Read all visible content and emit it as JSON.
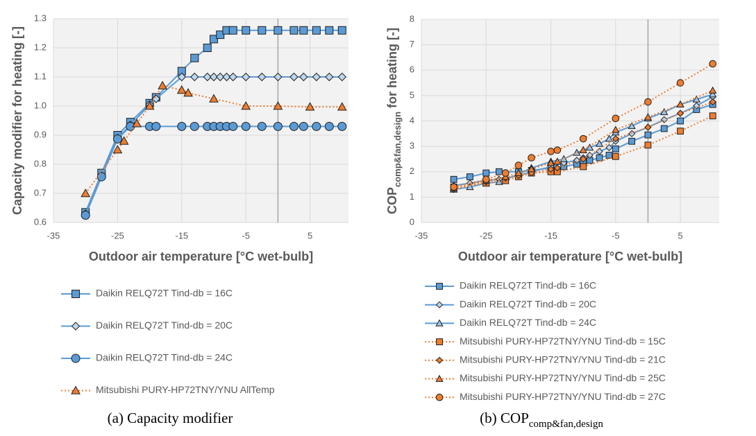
{
  "chart_data": [
    {
      "type": "line",
      "ylabel": "Capacity modifier for heating [-]",
      "xlabel": "Outdoor air temperature [°C wet-bulb]",
      "caption": "(a) Capacity modifier",
      "xlim": [
        -35,
        11
      ],
      "xticks": [
        -35,
        -25,
        -15,
        -5,
        5
      ],
      "ylim": [
        0.6,
        1.3
      ],
      "yticks": [
        0.6,
        0.7,
        0.8,
        0.9,
        {
          "value": 1,
          "label": "1.0"
        },
        1.1,
        1.2,
        1.3
      ],
      "grid": true,
      "series": [
        {
          "name": "Daikin RELQ72T Tind-db = 16C",
          "color": "#5b9bd5",
          "marker": "square",
          "marker_fill": "#5b9bd5",
          "linestyle": "solid",
          "x": [
            -30,
            -27.5,
            -25,
            -23,
            -20,
            -19,
            -15,
            -13,
            -11,
            -10,
            -9,
            -8,
            -7,
            -5,
            -2.5,
            0,
            2.5,
            4,
            6,
            8,
            10
          ],
          "values": [
            0.635,
            0.77,
            0.9,
            0.945,
            1.01,
            1.03,
            1.12,
            1.165,
            1.2,
            1.23,
            1.245,
            1.26,
            1.26,
            1.26,
            1.26,
            1.26,
            1.26,
            1.26,
            1.26,
            1.26,
            1.26
          ]
        },
        {
          "name": "Daikin RELQ72T Tind-db = 20C",
          "color": "#5b9bd5",
          "marker": "diamond",
          "marker_fill": "#bdd7ee",
          "linestyle": "solid",
          "x": [
            -30,
            -27.5,
            -25,
            -23,
            -20,
            -19,
            -15,
            -13,
            -11,
            -10,
            -9,
            -8,
            -7,
            -5,
            -2.5,
            0,
            2.5,
            4,
            6,
            8,
            10
          ],
          "values": [
            0.63,
            0.76,
            0.89,
            0.935,
            1.005,
            1.025,
            1.1,
            1.1,
            1.1,
            1.1,
            1.1,
            1.1,
            1.1,
            1.1,
            1.1,
            1.1,
            1.1,
            1.1,
            1.1,
            1.1,
            1.1
          ]
        },
        {
          "name": "Daikin RELQ72T Tind-db = 24C",
          "color": "#5b9bd5",
          "marker": "circle",
          "marker_fill": "#5b9bd5",
          "linestyle": "solid",
          "x": [
            -30,
            -27.5,
            -25,
            -23,
            -20,
            -19,
            -15,
            -13,
            -11,
            -10,
            -9,
            -8,
            -7,
            -5,
            -2.5,
            0,
            2.5,
            4,
            6,
            8,
            10
          ],
          "values": [
            0.625,
            0.757,
            0.887,
            0.93,
            0.93,
            0.93,
            0.93,
            0.93,
            0.93,
            0.93,
            0.93,
            0.93,
            0.93,
            0.93,
            0.93,
            0.93,
            0.93,
            0.93,
            0.93,
            0.93,
            0.93
          ]
        },
        {
          "name": "Mitsubishi PURY-HP72TNY/YNU AllTemp",
          "color": "#ed7d31",
          "marker": "triangle",
          "marker_fill": "#ed7d31",
          "linestyle": "dotted",
          "x": [
            -30,
            -25,
            -24,
            -22,
            -20,
            -18,
            -15,
            -14,
            -10,
            -5,
            0,
            5,
            10
          ],
          "values": [
            0.7,
            0.85,
            0.88,
            0.94,
            1.0,
            1.07,
            1.055,
            1.045,
            1.025,
            1.0,
            1.0,
            0.997,
            0.997
          ]
        }
      ]
    },
    {
      "type": "line",
      "ylabel": "COP",
      "ylabel_sub": "comp&fan,design",
      "ylabel_suffix": "for heating [-]",
      "xlabel": "Outdoor air temperature [°C wet-bulb]",
      "caption": "(b) COP",
      "caption_sub": "comp&fan,design",
      "xlim": [
        -35,
        11
      ],
      "xticks": [
        -35,
        -25,
        -15,
        -5,
        5
      ],
      "ylim": [
        0,
        8
      ],
      "yticks": [
        0,
        1,
        2,
        3,
        4,
        5,
        6,
        7,
        8
      ],
      "grid": true,
      "series": [
        {
          "name": "Daikin RELQ72T Tind-db = 16C",
          "color": "#5b9bd5",
          "marker": "square",
          "marker_fill": "#5b9bd5",
          "linestyle": "solid",
          "x": [
            -30,
            -27.5,
            -25,
            -23,
            -20,
            -18,
            -15,
            -13,
            -11,
            -10,
            -9,
            -7.5,
            -6,
            -5,
            -2.5,
            0,
            2.5,
            5,
            7.5,
            10
          ],
          "values": [
            1.7,
            1.8,
            1.95,
            2.0,
            2.0,
            2.05,
            2.15,
            2.2,
            2.3,
            2.4,
            2.45,
            2.55,
            2.65,
            2.9,
            3.2,
            3.45,
            3.7,
            4.0,
            4.45,
            4.65
          ]
        },
        {
          "name": "Daikin RELQ72T Tind-db = 20C",
          "color": "#5b9bd5",
          "marker": "diamond",
          "marker_fill": "#bdd7ee",
          "linestyle": "solid",
          "x": [
            -30,
            -27.5,
            -25,
            -23,
            -20,
            -18,
            -15,
            -13,
            -11,
            -10,
            -9,
            -7.5,
            -6,
            -5,
            -2.5,
            0,
            2.5,
            5,
            7.5,
            10
          ],
          "values": [
            1.45,
            1.55,
            1.65,
            1.7,
            1.85,
            2.0,
            2.2,
            2.35,
            2.45,
            2.55,
            2.65,
            2.8,
            2.95,
            3.2,
            3.5,
            3.75,
            4.05,
            4.3,
            4.6,
            4.95
          ]
        },
        {
          "name": "Daikin RELQ72T Tind-db = 24C",
          "color": "#5b9bd5",
          "marker": "triangle",
          "marker_fill": "#9dc3e6",
          "linestyle": "solid",
          "x": [
            -30,
            -27.5,
            -25,
            -23,
            -20,
            -18,
            -15,
            -13,
            -11,
            -10,
            -9,
            -7.5,
            -6,
            -5,
            -2.5,
            0,
            2.5,
            5,
            7.5,
            10
          ],
          "values": [
            1.3,
            1.4,
            1.55,
            1.6,
            1.9,
            2.15,
            2.4,
            2.5,
            2.75,
            2.85,
            2.95,
            3.1,
            3.3,
            3.55,
            3.8,
            4.1,
            4.35,
            4.65,
            4.85,
            5.05
          ]
        },
        {
          "name": "Mitsubishi PURY-HP72TNY/YNU Tind-db = 15C",
          "color": "#ed7d31",
          "marker": "square",
          "marker_fill": "#ed7d31",
          "linestyle": "dotted",
          "x": [
            -30,
            -25,
            -22,
            -20,
            -18,
            -15,
            -14,
            -10,
            -5,
            0,
            5,
            10
          ],
          "values": [
            1.4,
            1.55,
            1.65,
            1.8,
            1.95,
            2.0,
            2.0,
            2.2,
            2.6,
            3.05,
            3.6,
            4.2
          ]
        },
        {
          "name": "Mitsubishi PURY-HP72TNY/YNU Tind-db = 21C",
          "color": "#ed7d31",
          "marker": "diamond",
          "marker_fill": "#ed7d31",
          "linestyle": "dotted",
          "x": [
            -30,
            -25,
            -22,
            -20,
            -18,
            -15,
            -14,
            -10,
            -5,
            0,
            5,
            10
          ],
          "values": [
            1.3,
            1.6,
            1.75,
            1.85,
            1.95,
            2.1,
            2.15,
            2.5,
            3.3,
            3.75,
            4.3,
            4.75
          ]
        },
        {
          "name": "Mitsubishi PURY-HP72TNY/YNU Tind-db = 25C",
          "color": "#ed7d31",
          "marker": "triangle",
          "marker_fill": "#ed7d31",
          "linestyle": "dotted",
          "x": [
            -30,
            -25,
            -22,
            -20,
            -18,
            -15,
            -14,
            -10,
            -5,
            0,
            5,
            10
          ],
          "values": [
            1.35,
            1.65,
            1.8,
            1.95,
            2.1,
            2.35,
            2.4,
            2.85,
            3.65,
            4.15,
            4.65,
            5.2
          ]
        },
        {
          "name": "Mitsubishi PURY-HP72TNY/YNU Tind-db = 27C",
          "color": "#ed7d31",
          "marker": "circle",
          "marker_fill": "#ed7d31",
          "linestyle": "dotted",
          "x": [
            -30,
            -25,
            -22,
            -20,
            -18,
            -15,
            -14,
            -10,
            -5,
            0,
            5,
            10
          ],
          "values": [
            1.4,
            1.7,
            1.95,
            2.25,
            2.55,
            2.8,
            2.85,
            3.3,
            4.1,
            4.75,
            5.5,
            6.25
          ]
        }
      ]
    }
  ]
}
